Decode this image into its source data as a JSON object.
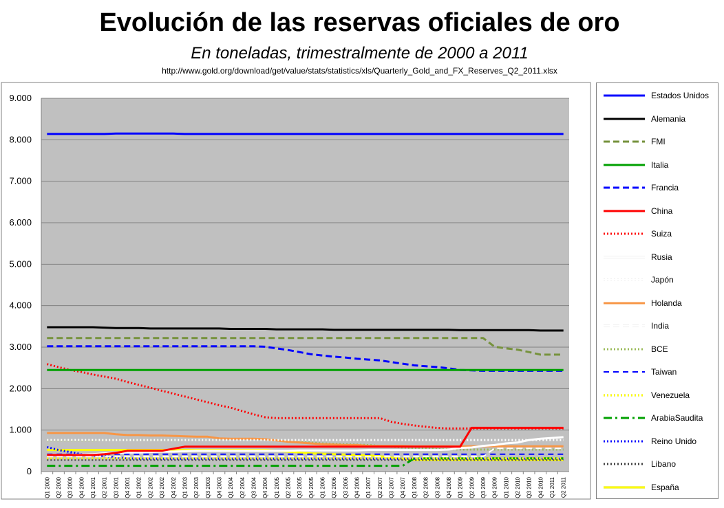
{
  "header": {
    "title": "Evolución de las reservas oficiales de oro",
    "subtitle": "En toneladas, trimestralmente de 2000 a 2011",
    "source": "http://www.gold.org/download/get/value/stats/statistics/xls/Quarterly_Gold_and_FX_Reserves_Q2_2011.xlsx"
  },
  "chart_data": {
    "type": "line",
    "title": "Evolución de las reservas oficiales de oro",
    "subtitle": "En toneladas, trimestralmente de 2000 a 2011",
    "ylim": [
      0,
      9000
    ],
    "yticks": [
      0,
      1000,
      2000,
      3000,
      4000,
      5000,
      6000,
      7000,
      8000,
      9000
    ],
    "ytick_labels": [
      "0",
      "1.000",
      "2.000",
      "3.000",
      "4.000",
      "5.000",
      "6.000",
      "7.000",
      "8.000",
      "9.000"
    ],
    "grid": true,
    "plot_background": "#c0c0c0",
    "legend_position": "right",
    "categories": [
      "Q1 2000",
      "Q2 2000",
      "Q3 2000",
      "Q4 2000",
      "Q1 2001",
      "Q2 2001",
      "Q3 2001",
      "Q4 2001",
      "Q1 2002",
      "Q2 2002",
      "Q3 2002",
      "Q4 2002",
      "Q1 2003",
      "Q2 2003",
      "Q3 2003",
      "Q4 2003",
      "Q1 2004",
      "Q2 2004",
      "Q3 2004",
      "Q4 2004",
      "Q1 2005",
      "Q2 2005",
      "Q3 2005",
      "Q4 2005",
      "Q1 2006",
      "Q2 2006",
      "Q3 2006",
      "Q4 2006",
      "Q1 2007",
      "Q2 2007",
      "Q3 2007",
      "Q4 2007",
      "Q1 2008",
      "Q2 2008",
      "Q3 2008",
      "Q4 2008",
      "Q1 2009",
      "Q2 2009",
      "Q3 2009",
      "Q4 2009",
      "Q1 2010",
      "Q2 2010",
      "Q3 2010",
      "Q4 2010",
      "Q1 2011",
      "Q2 2011"
    ],
    "series": [
      {
        "name": "Estados Unidos",
        "color": "#0000ff",
        "dash": "solid",
        "width": 3,
        "values": [
          8140,
          8140,
          8140,
          8140,
          8140,
          8140,
          8150,
          8150,
          8150,
          8150,
          8150,
          8150,
          8140,
          8140,
          8140,
          8140,
          8140,
          8140,
          8140,
          8140,
          8140,
          8140,
          8140,
          8140,
          8140,
          8140,
          8140,
          8140,
          8140,
          8140,
          8140,
          8140,
          8140,
          8140,
          8140,
          8140,
          8140,
          8140,
          8140,
          8140,
          8140,
          8140,
          8140,
          8140,
          8140,
          8140
        ]
      },
      {
        "name": "Alemania",
        "color": "#000000",
        "dash": "solid",
        "width": 3,
        "values": [
          3480,
          3480,
          3480,
          3480,
          3480,
          3470,
          3460,
          3460,
          3460,
          3450,
          3450,
          3450,
          3450,
          3450,
          3450,
          3450,
          3440,
          3440,
          3440,
          3440,
          3430,
          3430,
          3430,
          3430,
          3430,
          3420,
          3420,
          3420,
          3420,
          3420,
          3420,
          3420,
          3420,
          3420,
          3420,
          3420,
          3410,
          3410,
          3410,
          3410,
          3410,
          3410,
          3410,
          3400,
          3400,
          3400
        ]
      },
      {
        "name": "FMI",
        "color": "#76923c",
        "dash": "long",
        "width": 3,
        "values": [
          3220,
          3220,
          3220,
          3220,
          3220,
          3220,
          3220,
          3220,
          3220,
          3220,
          3220,
          3220,
          3220,
          3220,
          3220,
          3220,
          3220,
          3220,
          3220,
          3220,
          3220,
          3220,
          3220,
          3220,
          3220,
          3220,
          3220,
          3220,
          3220,
          3220,
          3220,
          3220,
          3220,
          3220,
          3220,
          3220,
          3220,
          3220,
          3220,
          3010,
          2970,
          2940,
          2880,
          2820,
          2820,
          2820
        ]
      },
      {
        "name": "Italia",
        "color": "#00a000",
        "dash": "solid",
        "width": 3,
        "values": [
          2450,
          2450,
          2450,
          2450,
          2450,
          2450,
          2450,
          2450,
          2450,
          2450,
          2450,
          2450,
          2450,
          2450,
          2450,
          2450,
          2450,
          2450,
          2450,
          2450,
          2450,
          2450,
          2450,
          2450,
          2450,
          2450,
          2450,
          2450,
          2450,
          2450,
          2450,
          2450,
          2450,
          2450,
          2450,
          2450,
          2450,
          2450,
          2450,
          2450,
          2450,
          2450,
          2450,
          2450,
          2450,
          2450
        ]
      },
      {
        "name": "Francia",
        "color": "#0000ff",
        "dash": "long",
        "width": 3,
        "values": [
          3020,
          3020,
          3020,
          3020,
          3020,
          3020,
          3020,
          3020,
          3020,
          3020,
          3020,
          3020,
          3020,
          3020,
          3020,
          3020,
          3020,
          3020,
          3020,
          3010,
          2970,
          2930,
          2880,
          2830,
          2800,
          2770,
          2750,
          2720,
          2700,
          2680,
          2640,
          2600,
          2560,
          2540,
          2520,
          2490,
          2450,
          2440,
          2430,
          2430,
          2430,
          2430,
          2430,
          2430,
          2430,
          2430
        ]
      },
      {
        "name": "China",
        "color": "#ff0000",
        "dash": "solid",
        "width": 3,
        "values": [
          400,
          400,
          400,
          400,
          400,
          420,
          450,
          500,
          500,
          500,
          500,
          550,
          600,
          600,
          600,
          600,
          600,
          600,
          600,
          600,
          600,
          600,
          600,
          600,
          600,
          600,
          600,
          600,
          600,
          600,
          600,
          600,
          600,
          600,
          600,
          600,
          600,
          1054,
          1054,
          1054,
          1054,
          1054,
          1054,
          1054,
          1054,
          1054
        ]
      },
      {
        "name": "Suiza",
        "color": "#ff0000",
        "dash": "dot",
        "width": 3,
        "values": [
          2590,
          2520,
          2450,
          2400,
          2340,
          2290,
          2240,
          2160,
          2090,
          2020,
          1950,
          1880,
          1810,
          1740,
          1670,
          1600,
          1540,
          1460,
          1380,
          1310,
          1290,
          1290,
          1290,
          1290,
          1290,
          1290,
          1290,
          1290,
          1290,
          1290,
          1200,
          1150,
          1110,
          1080,
          1050,
          1040,
          1040,
          1040,
          1040,
          1040,
          1040,
          1040,
          1040,
          1040,
          1040,
          1040
        ]
      },
      {
        "name": "Rusia",
        "color": "#ffffff",
        "dash": "solid",
        "width": 3,
        "values": [
          400,
          400,
          400,
          410,
          420,
          440,
          450,
          460,
          460,
          470,
          480,
          480,
          490,
          500,
          500,
          500,
          500,
          500,
          500,
          500,
          500,
          500,
          510,
          510,
          510,
          510,
          510,
          510,
          520,
          520,
          520,
          520,
          520,
          520,
          520,
          530,
          570,
          580,
          620,
          640,
          680,
          700,
          760,
          790,
          810,
          830
        ]
      },
      {
        "name": "Japón",
        "color": "#ffffff",
        "dash": "dot",
        "width": 3,
        "values": [
          760,
          760,
          760,
          760,
          760,
          760,
          760,
          760,
          760,
          760,
          760,
          760,
          760,
          760,
          760,
          760,
          760,
          760,
          760,
          760,
          760,
          760,
          760,
          760,
          760,
          760,
          760,
          760,
          760,
          760,
          760,
          760,
          760,
          760,
          760,
          760,
          760,
          760,
          760,
          760,
          760,
          760,
          760,
          760,
          760,
          760
        ]
      },
      {
        "name": "Holanda",
        "color": "#f79646",
        "dash": "solid",
        "width": 3,
        "values": [
          930,
          930,
          930,
          930,
          930,
          930,
          900,
          880,
          880,
          870,
          870,
          860,
          850,
          840,
          840,
          800,
          790,
          790,
          790,
          780,
          750,
          720,
          700,
          680,
          660,
          650,
          640,
          640,
          620,
          620,
          620,
          620,
          610,
          610,
          610,
          610,
          610,
          610,
          610,
          610,
          610,
          610,
          610,
          610,
          610,
          610
        ]
      },
      {
        "name": "India",
        "color": "#ffffff",
        "dash": "long",
        "width": 2,
        "values": [
          360,
          360,
          360,
          360,
          360,
          360,
          360,
          360,
          360,
          360,
          360,
          360,
          360,
          360,
          360,
          360,
          360,
          360,
          360,
          360,
          360,
          360,
          360,
          360,
          360,
          360,
          360,
          360,
          360,
          360,
          360,
          360,
          360,
          360,
          360,
          360,
          360,
          360,
          360,
          560,
          560,
          560,
          560,
          560,
          560,
          560
        ]
      },
      {
        "name": "BCE",
        "color": "#9bbb59",
        "dash": "dot",
        "width": 3,
        "values": [
          750,
          750,
          750,
          750,
          750,
          760,
          760,
          760,
          760,
          760,
          760,
          760,
          760,
          760,
          760,
          760,
          760,
          760,
          760,
          760,
          760,
          740,
          720,
          700,
          680,
          670,
          660,
          650,
          640,
          620,
          600,
          580,
          570,
          560,
          540,
          540,
          530,
          530,
          530,
          530,
          530,
          530,
          530,
          530,
          530,
          530
        ]
      },
      {
        "name": "Taiwan",
        "color": "#0000ff",
        "dash": "medium",
        "width": 2,
        "values": [
          420,
          420,
          420,
          420,
          420,
          420,
          420,
          420,
          420,
          420,
          420,
          420,
          420,
          420,
          420,
          420,
          420,
          420,
          420,
          420,
          420,
          420,
          420,
          420,
          420,
          420,
          420,
          420,
          420,
          420,
          420,
          420,
          420,
          420,
          420,
          420,
          420,
          420,
          420,
          420,
          420,
          420,
          420,
          420,
          420,
          420
        ]
      },
      {
        "name": "Venezuela",
        "color": "#ffff00",
        "dash": "dot",
        "width": 3,
        "values": [
          320,
          320,
          320,
          320,
          320,
          320,
          320,
          320,
          320,
          320,
          320,
          320,
          320,
          320,
          320,
          320,
          320,
          320,
          320,
          320,
          320,
          320,
          320,
          320,
          320,
          320,
          320,
          320,
          320,
          320,
          320,
          320,
          320,
          320,
          320,
          320,
          320,
          320,
          320,
          320,
          320,
          320,
          320,
          320,
          320,
          320
        ]
      },
      {
        "name": "ArabiaSaudita",
        "color": "#00a000",
        "dash": "dashdot",
        "width": 3,
        "values": [
          140,
          140,
          140,
          140,
          140,
          140,
          140,
          140,
          140,
          140,
          140,
          140,
          140,
          140,
          140,
          140,
          140,
          140,
          140,
          140,
          140,
          140,
          140,
          140,
          140,
          140,
          140,
          140,
          140,
          140,
          140,
          140,
          320,
          320,
          320,
          320,
          320,
          320,
          320,
          320,
          320,
          320,
          320,
          320,
          320,
          320
        ]
      },
      {
        "name": "Reino Unido",
        "color": "#0000ff",
        "dash": "dot",
        "width": 3,
        "values": [
          590,
          520,
          470,
          420,
          390,
          370,
          340,
          320,
          310,
          310,
          310,
          310,
          310,
          310,
          310,
          310,
          310,
          310,
          310,
          310,
          310,
          310,
          310,
          310,
          310,
          310,
          310,
          310,
          310,
          310,
          310,
          310,
          310,
          310,
          310,
          310,
          310,
          310,
          310,
          310,
          310,
          310,
          310,
          310,
          310,
          310
        ]
      },
      {
        "name": "Libano",
        "color": "#404040",
        "dash": "dot",
        "width": 3,
        "values": [
          287,
          287,
          287,
          287,
          287,
          287,
          287,
          287,
          287,
          287,
          287,
          287,
          287,
          287,
          287,
          287,
          287,
          287,
          287,
          287,
          287,
          287,
          287,
          287,
          287,
          287,
          287,
          287,
          287,
          287,
          287,
          287,
          287,
          287,
          287,
          287,
          287,
          287,
          287,
          287,
          287,
          287,
          287,
          287,
          287,
          287
        ]
      },
      {
        "name": "España",
        "color": "#ffff00",
        "dash": "solid",
        "width": 3,
        "values": [
          520,
          520,
          520,
          520,
          520,
          520,
          520,
          520,
          520,
          520,
          520,
          520,
          520,
          520,
          520,
          520,
          520,
          520,
          520,
          520,
          500,
          480,
          460,
          440,
          430,
          420,
          410,
          400,
          390,
          370,
          340,
          300,
          280,
          280,
          280,
          280,
          280,
          280,
          280,
          280,
          280,
          280,
          280,
          280,
          280,
          280
        ]
      }
    ]
  }
}
